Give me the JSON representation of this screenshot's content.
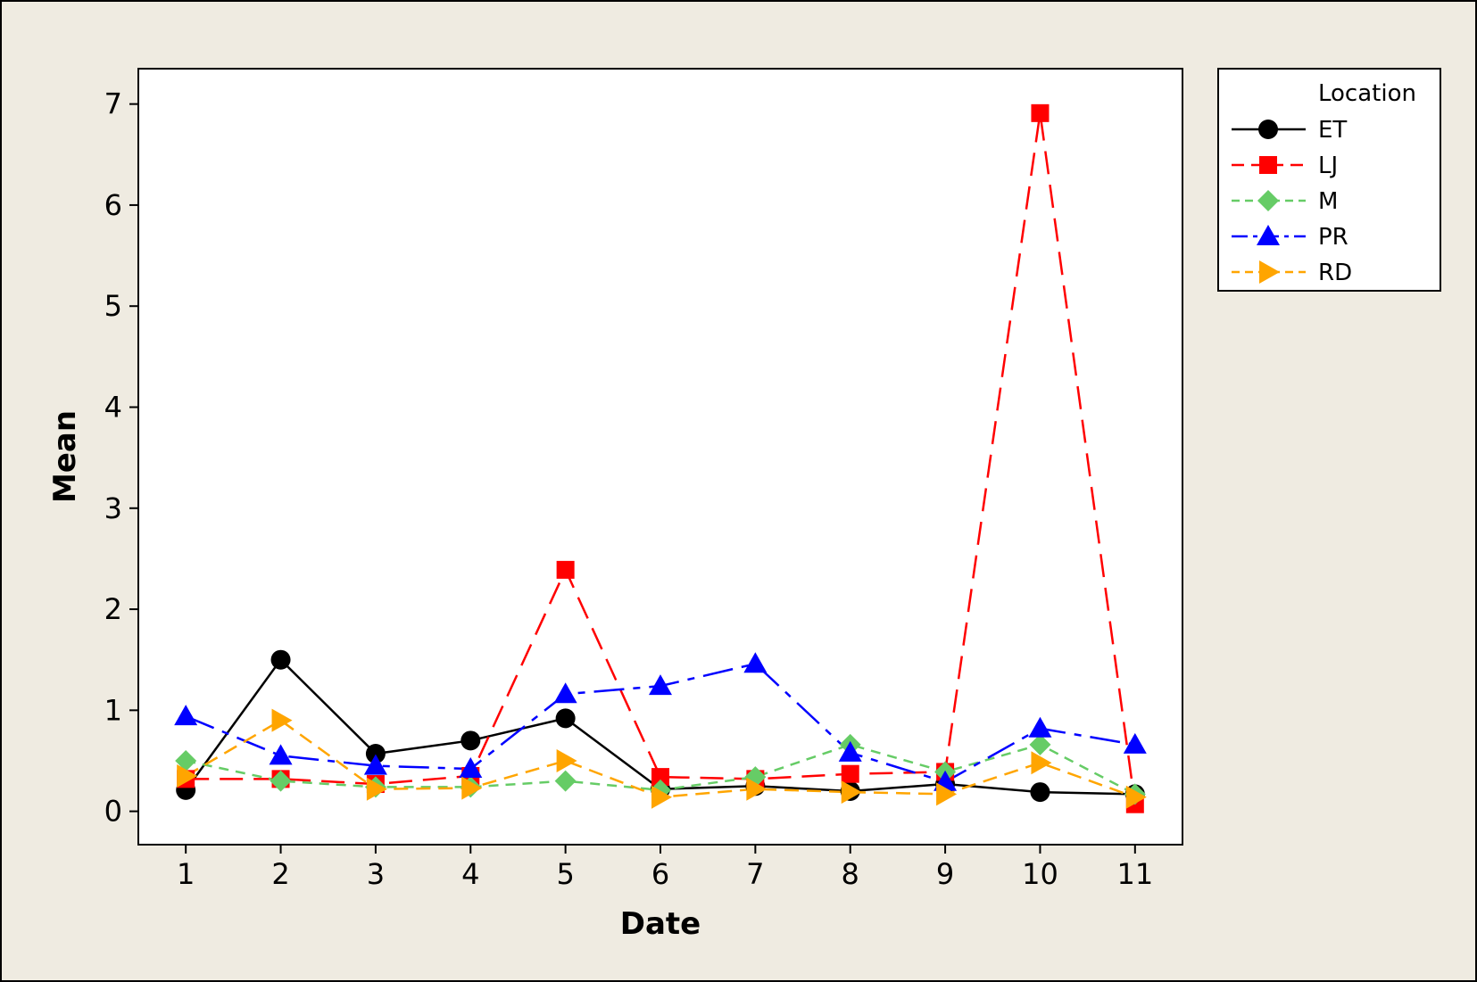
{
  "chart_data": {
    "type": "line",
    "xlabel": "Date",
    "ylabel": "Mean",
    "x": [
      1,
      2,
      3,
      4,
      5,
      6,
      7,
      8,
      9,
      10,
      11
    ],
    "xlim": [
      0.5,
      11.5
    ],
    "ylim": [
      -0.33,
      7.35
    ],
    "yticks": [
      0,
      1,
      2,
      3,
      4,
      5,
      6,
      7
    ],
    "grid": false,
    "legend": {
      "title": "Location",
      "position": "right"
    },
    "series": [
      {
        "name": "ET",
        "color": "#000000",
        "marker": "circle",
        "dash": "solid",
        "values": [
          0.21,
          1.5,
          0.57,
          0.7,
          0.92,
          0.22,
          0.25,
          0.2,
          0.27,
          0.19,
          0.17
        ]
      },
      {
        "name": "LJ",
        "color": "#ff0000",
        "marker": "square",
        "dash": "long-dash",
        "values": [
          0.32,
          0.32,
          0.27,
          0.35,
          2.39,
          0.34,
          0.32,
          0.37,
          0.39,
          6.91,
          0.07
        ]
      },
      {
        "name": "M",
        "color": "#66cc66",
        "marker": "diamond",
        "dash": "short-dash",
        "values": [
          0.5,
          0.3,
          0.24,
          0.24,
          0.3,
          0.21,
          0.34,
          0.66,
          0.39,
          0.66,
          0.17
        ]
      },
      {
        "name": "PR",
        "color": "#0000ff",
        "marker": "triangle-up",
        "dash": "dash-dot",
        "values": [
          0.94,
          0.55,
          0.45,
          0.42,
          1.16,
          1.24,
          1.46,
          0.58,
          0.29,
          0.82,
          0.66
        ]
      },
      {
        "name": "RD",
        "color": "#ffa500",
        "marker": "triangle-right",
        "dash": "dash",
        "values": [
          0.35,
          0.9,
          0.22,
          0.23,
          0.5,
          0.14,
          0.22,
          0.19,
          0.17,
          0.48,
          0.14
        ]
      }
    ]
  },
  "colors": {
    "outer_background": "#efebe1",
    "plot_background": "#ffffff",
    "frame": "#000000"
  }
}
